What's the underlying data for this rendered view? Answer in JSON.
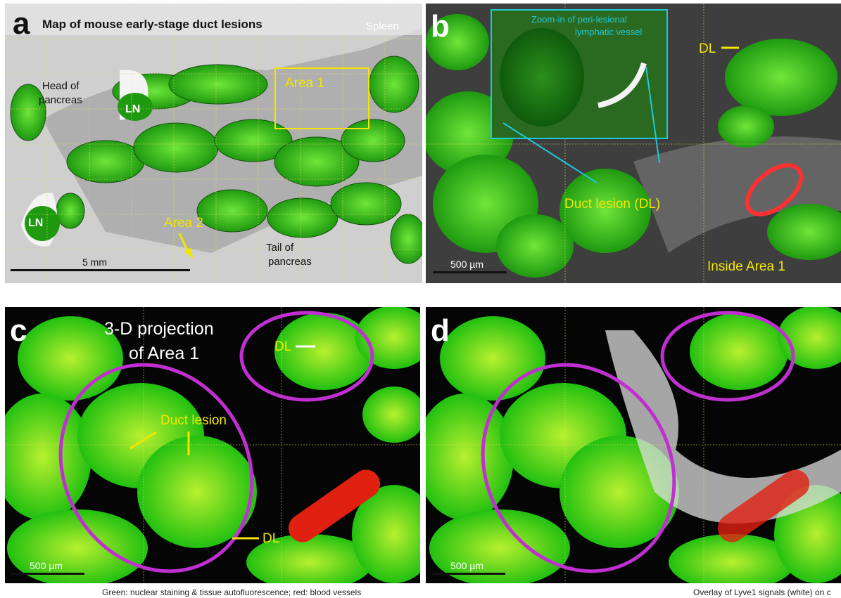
{
  "panel_a": {
    "letter": "a",
    "title": "Map of mouse early-stage duct lesions",
    "spleen": "Spleen",
    "area_1": "Area 1",
    "head_of_pancreas": [
      "Head of",
      "pancreas"
    ],
    "lymph_nodes": [
      "LN",
      "LN"
    ],
    "area_2": "Area 2",
    "scale_bar": "5 mm",
    "tail_of_pancreas": [
      "Tail of",
      "pancreas"
    ]
  },
  "panel_b": {
    "letter": "b",
    "zoom_in_label": [
      "Zoom-in of peri-lesional",
      "lymphatic vessel"
    ],
    "dl_label": "DL",
    "duct_lesion_label": "Duct lesion (DL)",
    "scale_bar": "500 µm",
    "location": "Inside Area 1"
  },
  "panel_c": {
    "letter": "c",
    "title": [
      "3-D projection",
      "of Area 1"
    ],
    "dl_labels": [
      "DL",
      "DL"
    ],
    "duct_lesion_label": "Duct lesion",
    "scale_bar": "500 µm"
  },
  "panel_d": {
    "letter": "d",
    "scale_bar": "500 µm"
  },
  "captions": {
    "left": "Green: nuclear staining & tissue autofluorescence; red: blood vessels",
    "right": "Overlay of Lyve1 signals (white) on c"
  }
}
